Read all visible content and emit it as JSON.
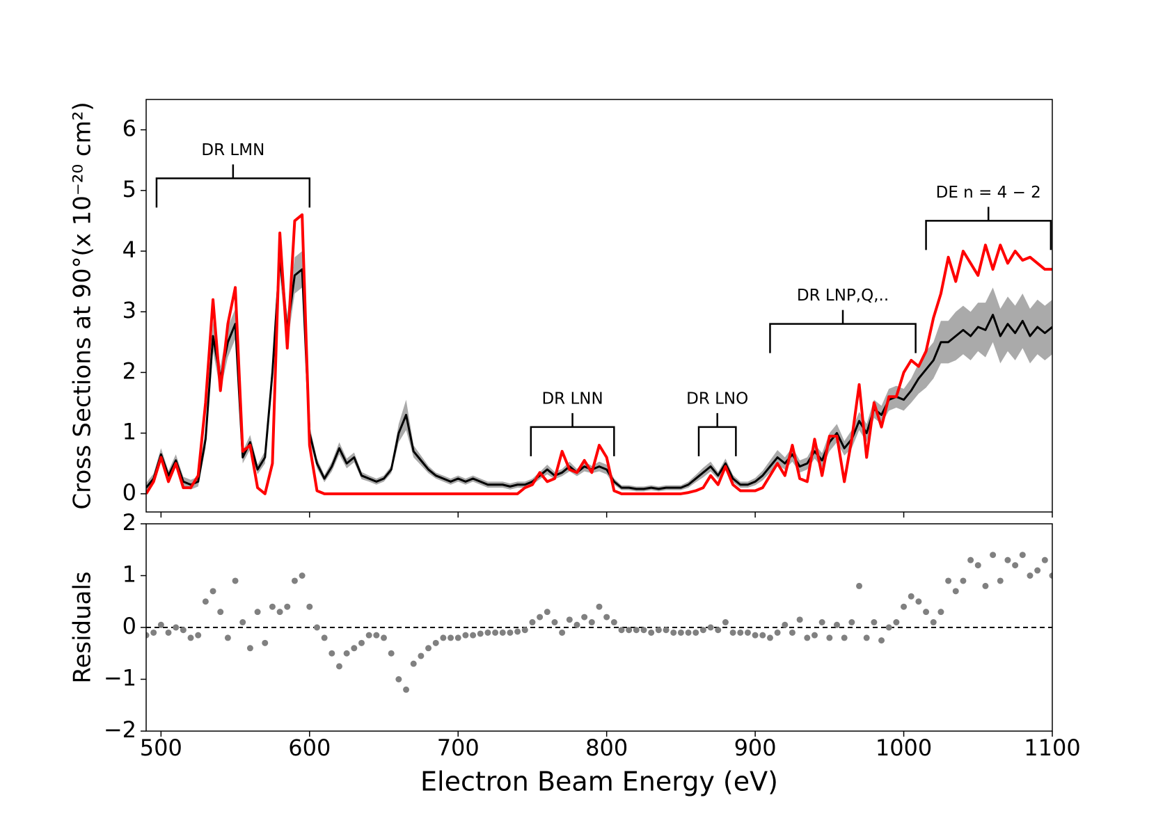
{
  "chart_data": [
    {
      "type": "line",
      "ylabel": "Cross Sections at 90°(x 10⁻²⁰ cm²)",
      "xlim": [
        490,
        1100
      ],
      "xticks": [
        500,
        600,
        700,
        800,
        900,
        1000,
        1100
      ],
      "xtick_labels": false,
      "ylim": [
        -0.3,
        6.5
      ],
      "yticks": [
        0,
        1,
        2,
        3,
        4,
        5,
        6
      ],
      "x": [
        490,
        495,
        500,
        505,
        510,
        515,
        520,
        525,
        530,
        535,
        540,
        545,
        550,
        555,
        560,
        565,
        570,
        575,
        580,
        585,
        590,
        595,
        600,
        605,
        610,
        615,
        620,
        625,
        630,
        635,
        640,
        645,
        650,
        655,
        660,
        665,
        670,
        675,
        680,
        685,
        690,
        695,
        700,
        705,
        710,
        715,
        720,
        725,
        730,
        735,
        740,
        745,
        750,
        755,
        760,
        765,
        770,
        775,
        780,
        785,
        790,
        795,
        800,
        805,
        810,
        815,
        820,
        825,
        830,
        835,
        840,
        845,
        850,
        855,
        860,
        865,
        870,
        875,
        880,
        885,
        890,
        895,
        900,
        905,
        910,
        915,
        920,
        925,
        930,
        935,
        940,
        945,
        950,
        955,
        960,
        965,
        970,
        975,
        980,
        985,
        990,
        995,
        1000,
        1005,
        1010,
        1015,
        1020,
        1025,
        1030,
        1035,
        1040,
        1045,
        1050,
        1055,
        1060,
        1065,
        1070,
        1075,
        1080,
        1085,
        1090,
        1095,
        1100
      ],
      "series": [
        {
          "color": "#000000",
          "error_color": "#aaaaaa",
          "values": [
            0.1,
            0.25,
            0.65,
            0.3,
            0.55,
            0.2,
            0.15,
            0.2,
            0.9,
            2.6,
            1.9,
            2.5,
            2.8,
            0.6,
            0.85,
            0.4,
            0.6,
            2.0,
            3.9,
            2.7,
            3.6,
            3.7,
            1.0,
            0.5,
            0.25,
            0.45,
            0.75,
            0.5,
            0.6,
            0.3,
            0.25,
            0.2,
            0.25,
            0.4,
            1.0,
            1.3,
            0.7,
            0.55,
            0.4,
            0.3,
            0.25,
            0.2,
            0.25,
            0.2,
            0.25,
            0.2,
            0.15,
            0.15,
            0.15,
            0.12,
            0.15,
            0.15,
            0.2,
            0.3,
            0.4,
            0.3,
            0.35,
            0.45,
            0.35,
            0.45,
            0.4,
            0.45,
            0.4,
            0.2,
            0.1,
            0.1,
            0.08,
            0.08,
            0.1,
            0.08,
            0.1,
            0.1,
            0.1,
            0.15,
            0.25,
            0.35,
            0.45,
            0.3,
            0.5,
            0.25,
            0.15,
            0.15,
            0.2,
            0.3,
            0.45,
            0.6,
            0.5,
            0.65,
            0.45,
            0.5,
            0.7,
            0.55,
            0.85,
            1.0,
            0.75,
            0.9,
            1.2,
            1.0,
            1.4,
            1.3,
            1.55,
            1.6,
            1.55,
            1.7,
            1.9,
            2.05,
            2.2,
            2.5,
            2.5,
            2.6,
            2.7,
            2.6,
            2.75,
            2.7,
            2.95,
            2.6,
            2.8,
            2.65,
            2.85,
            2.6,
            2.75,
            2.65,
            2.75
          ],
          "error": [
            0.08,
            0.08,
            0.1,
            0.08,
            0.1,
            0.08,
            0.08,
            0.08,
            0.15,
            0.25,
            0.2,
            0.25,
            0.25,
            0.1,
            0.12,
            0.08,
            0.1,
            0.2,
            0.3,
            0.25,
            0.3,
            0.3,
            0.12,
            0.08,
            0.06,
            0.08,
            0.1,
            0.08,
            0.08,
            0.06,
            0.05,
            0.05,
            0.05,
            0.06,
            0.15,
            0.25,
            0.1,
            0.08,
            0.06,
            0.05,
            0.05,
            0.05,
            0.05,
            0.05,
            0.05,
            0.05,
            0.05,
            0.05,
            0.05,
            0.05,
            0.05,
            0.05,
            0.05,
            0.06,
            0.08,
            0.06,
            0.06,
            0.08,
            0.06,
            0.08,
            0.06,
            0.08,
            0.08,
            0.05,
            0.04,
            0.04,
            0.04,
            0.04,
            0.04,
            0.04,
            0.04,
            0.04,
            0.04,
            0.05,
            0.06,
            0.08,
            0.08,
            0.06,
            0.08,
            0.06,
            0.05,
            0.05,
            0.06,
            0.08,
            0.1,
            0.12,
            0.1,
            0.12,
            0.1,
            0.1,
            0.12,
            0.12,
            0.15,
            0.15,
            0.12,
            0.15,
            0.15,
            0.15,
            0.15,
            0.15,
            0.18,
            0.18,
            0.18,
            0.2,
            0.25,
            0.3,
            0.3,
            0.35,
            0.35,
            0.4,
            0.4,
            0.4,
            0.4,
            0.45,
            0.45,
            0.45,
            0.45,
            0.45,
            0.45,
            0.45,
            0.45,
            0.45,
            0.45
          ]
        },
        {
          "color": "#ff0000",
          "values": [
            0.0,
            0.2,
            0.6,
            0.2,
            0.5,
            0.1,
            0.1,
            0.3,
            1.5,
            3.2,
            1.7,
            2.8,
            3.4,
            0.7,
            0.8,
            0.1,
            0.0,
            0.5,
            4.3,
            2.4,
            4.5,
            4.6,
            0.8,
            0.05,
            0.0,
            0.0,
            0.0,
            0.0,
            0.0,
            0.0,
            0.0,
            0.0,
            0.0,
            0.0,
            0.0,
            0.0,
            0.0,
            0.0,
            0.0,
            0.0,
            0.0,
            0.0,
            0.0,
            0.0,
            0.0,
            0.0,
            0.0,
            0.0,
            0.0,
            0.0,
            0.0,
            0.1,
            0.15,
            0.35,
            0.2,
            0.25,
            0.7,
            0.4,
            0.35,
            0.55,
            0.35,
            0.8,
            0.6,
            0.05,
            0.0,
            0.0,
            0.0,
            0.0,
            0.0,
            0.0,
            0.0,
            0.0,
            0.0,
            0.02,
            0.05,
            0.1,
            0.3,
            0.15,
            0.45,
            0.15,
            0.05,
            0.05,
            0.05,
            0.1,
            0.3,
            0.5,
            0.3,
            0.8,
            0.25,
            0.2,
            0.9,
            0.3,
            0.95,
            0.95,
            0.2,
            0.9,
            1.8,
            0.6,
            1.5,
            1.1,
            1.6,
            1.6,
            2.0,
            2.2,
            2.1,
            2.35,
            2.9,
            3.3,
            3.9,
            3.5,
            4.0,
            3.8,
            3.6,
            4.1,
            3.7,
            4.1,
            3.8,
            4.0,
            3.85,
            3.9,
            3.8,
            3.7,
            3.7
          ]
        }
      ],
      "annotations": [
        {
          "text": "DR LMN",
          "x": [
            497,
            600
          ],
          "y": 5.2
        },
        {
          "text": "DR LNN",
          "x": [
            749,
            805
          ],
          "y": 1.1
        },
        {
          "text": "DR LNO",
          "x": [
            862,
            887
          ],
          "y": 1.1
        },
        {
          "text": "DR LNP,Q,..",
          "x": [
            910,
            1008
          ],
          "y": 2.8
        },
        {
          "text": "DE n = 4 − 2",
          "x": [
            1015,
            1099
          ],
          "y": 4.5
        }
      ]
    },
    {
      "type": "scatter",
      "ylabel": "Residuals",
      "xlabel": "Electron Beam Energy (eV)",
      "xlim": [
        490,
        1100
      ],
      "xticks": [
        500,
        600,
        700,
        800,
        900,
        1000,
        1100
      ],
      "xtick_labels": true,
      "ylim": [
        -2,
        2
      ],
      "yticks": [
        {
          "value": -2,
          "label": "−2"
        },
        {
          "value": -1,
          "label": "−1"
        },
        0,
        1,
        2
      ],
      "color": "#808080",
      "hline": {
        "y": 0,
        "color": "#000000",
        "dashed": true
      },
      "x": [
        490,
        495,
        500,
        505,
        510,
        515,
        520,
        525,
        530,
        535,
        540,
        545,
        550,
        555,
        560,
        565,
        570,
        575,
        580,
        585,
        590,
        595,
        600,
        605,
        610,
        615,
        620,
        625,
        630,
        635,
        640,
        645,
        650,
        655,
        660,
        665,
        670,
        675,
        680,
        685,
        690,
        695,
        700,
        705,
        710,
        715,
        720,
        725,
        730,
        735,
        740,
        745,
        750,
        755,
        760,
        765,
        770,
        775,
        780,
        785,
        790,
        795,
        800,
        805,
        810,
        815,
        820,
        825,
        830,
        835,
        840,
        845,
        850,
        855,
        860,
        865,
        870,
        875,
        880,
        885,
        890,
        895,
        900,
        905,
        910,
        915,
        920,
        925,
        930,
        935,
        940,
        945,
        950,
        955,
        960,
        965,
        970,
        975,
        980,
        985,
        990,
        995,
        1000,
        1005,
        1010,
        1015,
        1020,
        1025,
        1030,
        1035,
        1040,
        1045,
        1050,
        1055,
        1060,
        1065,
        1070,
        1075,
        1080,
        1085,
        1090,
        1095,
        1100
      ],
      "values": [
        -0.15,
        -0.1,
        0.05,
        -0.1,
        0.0,
        -0.05,
        -0.2,
        -0.15,
        0.5,
        0.7,
        0.3,
        -0.2,
        0.9,
        0.1,
        -0.4,
        0.3,
        -0.3,
        0.4,
        0.3,
        0.4,
        0.9,
        1.0,
        0.4,
        0.0,
        -0.2,
        -0.5,
        -0.75,
        -0.5,
        -0.4,
        -0.3,
        -0.15,
        -0.15,
        -0.2,
        -0.5,
        -1.0,
        -1.2,
        -0.7,
        -0.55,
        -0.4,
        -0.3,
        -0.2,
        -0.2,
        -0.2,
        -0.15,
        -0.15,
        -0.12,
        -0.1,
        -0.1,
        -0.1,
        -0.1,
        -0.08,
        -0.05,
        0.1,
        0.2,
        0.3,
        0.1,
        -0.1,
        0.15,
        0.05,
        0.2,
        0.1,
        0.4,
        0.2,
        0.1,
        -0.05,
        -0.05,
        -0.05,
        -0.05,
        -0.1,
        -0.05,
        -0.05,
        -0.1,
        -0.1,
        -0.1,
        -0.1,
        -0.05,
        0.0,
        -0.05,
        0.1,
        -0.1,
        -0.1,
        -0.1,
        -0.15,
        -0.15,
        -0.2,
        -0.1,
        0.05,
        -0.1,
        0.15,
        -0.2,
        -0.15,
        0.1,
        -0.2,
        0.05,
        -0.2,
        0.1,
        0.8,
        -0.2,
        0.1,
        -0.25,
        0.0,
        0.1,
        0.4,
        0.6,
        0.5,
        0.3,
        0.1,
        0.3,
        0.9,
        0.7,
        0.9,
        1.3,
        1.2,
        0.8,
        1.4,
        0.9,
        1.3,
        1.2,
        1.4,
        1.0,
        1.1,
        1.3,
        1.0
      ]
    }
  ]
}
